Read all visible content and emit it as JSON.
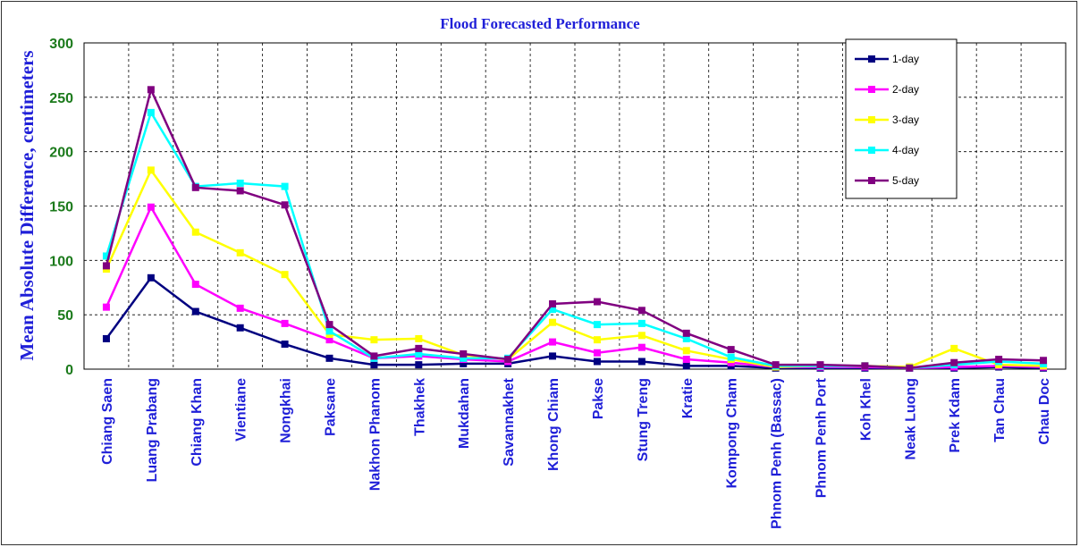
{
  "chart_data": {
    "type": "line",
    "title": "Flood Forecasted Performance",
    "ylabel": "Mean Absolute Difference, centimeters",
    "xlabel": "",
    "ylim": [
      0,
      300
    ],
    "yticks": [
      "0",
      "50",
      "100",
      "150",
      "200",
      "250",
      "300"
    ],
    "grid": true,
    "legend_position": "top-right",
    "categories": [
      "Chiang Saen",
      "Luang Prabang",
      "Chiang Khan",
      "Vientiane",
      "Nongkhai",
      "Paksane",
      "Nakhon Phanom",
      "Thakhek",
      "Mukdahan",
      "Savannakhet",
      "Khong Chiam",
      "Pakse",
      "Stung Treng",
      "Kratie",
      "Kompong Cham",
      "Phnom Penh (Bassac)",
      "Phnom Penh Port",
      "Koh Khel",
      "Neak Luong",
      "Prek Kdam",
      "Tan Chau",
      "Chau Doc"
    ],
    "series": [
      {
        "name": "1-day",
        "color": "#000080",
        "values": [
          28,
          84,
          53,
          38,
          23,
          10,
          4,
          4,
          5,
          5,
          12,
          7,
          7,
          3,
          3,
          1,
          1,
          1,
          1,
          1,
          2,
          1
        ]
      },
      {
        "name": "2-day",
        "color": "#ff00ff",
        "values": [
          57,
          149,
          78,
          56,
          42,
          27,
          10,
          12,
          9,
          7,
          25,
          15,
          20,
          9,
          6,
          2,
          2,
          2,
          1,
          2,
          3,
          2
        ]
      },
      {
        "name": "3-day",
        "color": "#ffff00",
        "values": [
          92,
          183,
          126,
          107,
          87,
          32,
          27,
          28,
          13,
          9,
          43,
          27,
          31,
          17,
          9,
          2,
          3,
          3,
          2,
          19,
          4,
          3
        ]
      },
      {
        "name": "4-day",
        "color": "#00ffff",
        "values": [
          104,
          236,
          168,
          171,
          168,
          35,
          10,
          14,
          10,
          10,
          55,
          41,
          42,
          28,
          11,
          3,
          3,
          3,
          1,
          4,
          7,
          5
        ]
      },
      {
        "name": "5-day",
        "color": "#800080",
        "values": [
          95,
          257,
          167,
          164,
          151,
          41,
          12,
          19,
          14,
          9,
          60,
          62,
          54,
          33,
          18,
          4,
          4,
          3,
          1,
          6,
          9,
          8
        ]
      }
    ]
  }
}
